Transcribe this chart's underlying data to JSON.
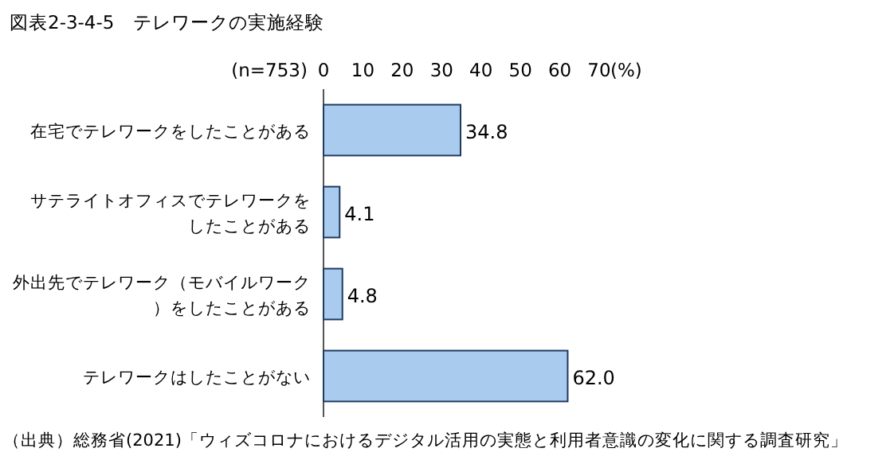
{
  "chart_data": {
    "type": "bar",
    "orientation": "horizontal",
    "title": "図表2-3-4-5　テレワークの実施経験",
    "categories": [
      "在宅でテレワークをしたことがある",
      "サテライトオフィスでテレワークをしたことがある",
      "外出先でテレワーク（モバイルワーク）をしたことがある",
      "テレワークはしたことがない"
    ],
    "values": [
      34.8,
      4.1,
      4.8,
      62.0
    ],
    "value_labels": [
      "34.8",
      "4.1",
      "4.8",
      "62.0"
    ],
    "color": "#a9cbee",
    "xlim": [
      0,
      70
    ],
    "xticks": [
      0,
      10,
      20,
      30,
      40,
      50,
      60,
      70
    ],
    "xlabel": "(%)",
    "annotations": [
      "(n=753)",
      "（出典）総務省(2021)「ウィズコロナにおけるデジタル活用の実態と利用者意識の変化に関する調査研究」"
    ],
    "grid": false
  }
}
